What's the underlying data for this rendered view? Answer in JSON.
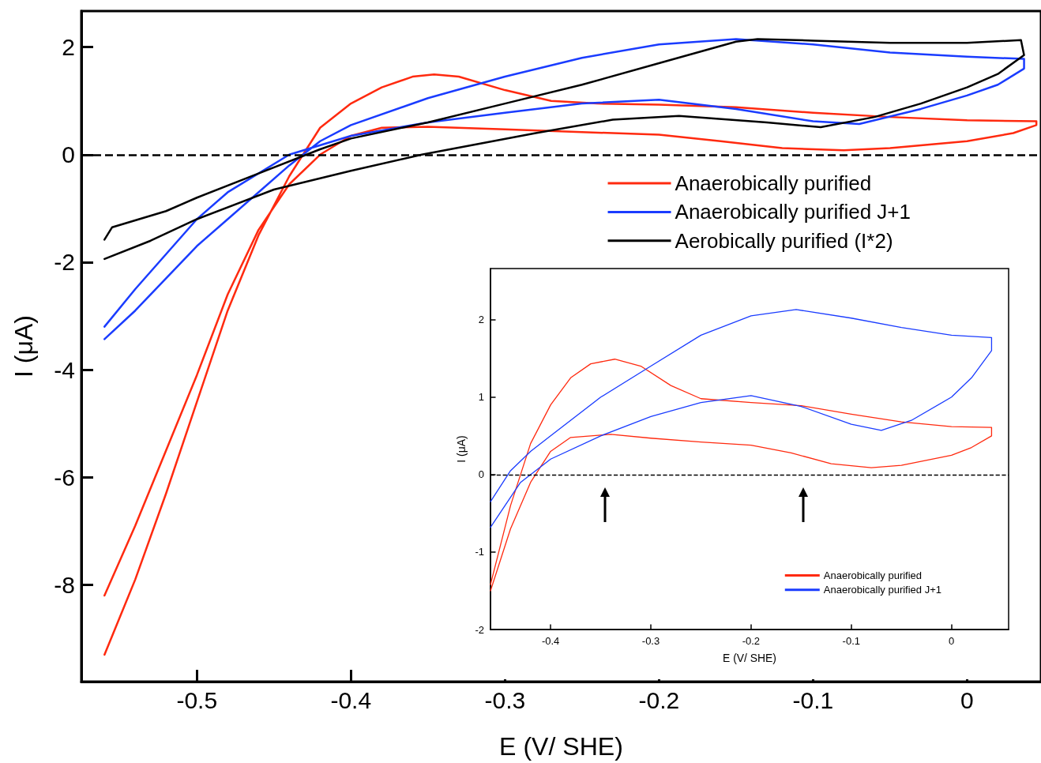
{
  "chart_data": [
    {
      "type": "line",
      "xlabel": "E (V/ SHE)",
      "ylabel": "I (μA)",
      "xlim": [
        -0.575,
        0.048
      ],
      "ylim": [
        -9.8,
        2.67
      ],
      "xticks": [
        -0.5,
        -0.4,
        -0.3,
        -0.2,
        -0.1,
        0
      ],
      "yticks": [
        -8,
        -6,
        -4,
        -2,
        0,
        2
      ],
      "grid": false,
      "legend": "top right",
      "marker": "none",
      "line_style": "solid",
      "ref_lines": [
        {
          "axis": "y",
          "value": 0,
          "line_style": "dashed",
          "color": "#000000"
        }
      ],
      "series": [
        {
          "name": "Anaerobically purified",
          "color": "#ff2a0f",
          "x": [
            -0.56,
            -0.54,
            -0.52,
            -0.5,
            -0.48,
            -0.46,
            -0.44,
            -0.42,
            -0.4,
            -0.38,
            -0.36,
            -0.346,
            -0.33,
            -0.3,
            -0.27,
            -0.24,
            -0.2,
            -0.15,
            -0.1,
            -0.05,
            0,
            0.045,
            0.045,
            0.03,
            0,
            -0.05,
            -0.08,
            -0.12,
            -0.16,
            -0.2,
            -0.25,
            -0.3,
            -0.35,
            -0.38,
            -0.4,
            -0.42,
            -0.44,
            -0.46,
            -0.48,
            -0.5,
            -0.52,
            -0.54,
            -0.56
          ],
          "values": [
            -9.3,
            -7.9,
            -6.3,
            -4.6,
            -2.9,
            -1.5,
            -0.4,
            0.5,
            0.95,
            1.25,
            1.45,
            1.49,
            1.45,
            1.2,
            1.0,
            0.95,
            0.93,
            0.88,
            0.78,
            0.7,
            0.64,
            0.62,
            0.55,
            0.4,
            0.25,
            0.12,
            0.08,
            0.12,
            0.25,
            0.37,
            0.42,
            0.47,
            0.52,
            0.5,
            0.35,
            0.0,
            -0.55,
            -1.4,
            -2.6,
            -4.1,
            -5.5,
            -6.9,
            -8.2
          ]
        },
        {
          "name": "Anaerobically purified J+1",
          "color": "#1a3cff",
          "x": [
            -0.56,
            -0.54,
            -0.52,
            -0.5,
            -0.48,
            -0.46,
            -0.44,
            -0.42,
            -0.4,
            -0.35,
            -0.3,
            -0.25,
            -0.2,
            -0.15,
            -0.1,
            -0.05,
            0,
            0.037,
            0.037,
            0.02,
            0,
            -0.03,
            -0.07,
            -0.1,
            -0.15,
            -0.2,
            -0.25,
            -0.3,
            -0.35,
            -0.4,
            -0.44,
            -0.48,
            -0.5,
            -0.52,
            -0.54,
            -0.56
          ],
          "values": [
            -3.43,
            -2.9,
            -2.3,
            -1.7,
            -1.2,
            -0.7,
            -0.2,
            0.25,
            0.55,
            1.05,
            1.45,
            1.8,
            2.05,
            2.15,
            2.05,
            1.9,
            1.82,
            1.78,
            1.6,
            1.3,
            1.1,
            0.85,
            0.57,
            0.62,
            0.85,
            1.02,
            0.95,
            0.78,
            0.6,
            0.35,
            0.0,
            -0.7,
            -1.2,
            -1.85,
            -2.5,
            -3.2
          ]
        },
        {
          "name": "Aerobically purified (I*2)",
          "color": "#000000",
          "x": [
            -0.56,
            -0.555,
            -0.52,
            -0.5,
            -0.46,
            -0.42,
            -0.4,
            -0.35,
            -0.3,
            -0.25,
            -0.2,
            -0.15,
            -0.136,
            -0.1,
            -0.05,
            0,
            0.035,
            0.037,
            0.02,
            0,
            -0.03,
            -0.06,
            -0.095,
            -0.13,
            -0.187,
            -0.23,
            -0.28,
            -0.354,
            -0.4,
            -0.45,
            -0.5,
            -0.53,
            -0.56
          ],
          "values": [
            -1.58,
            -1.35,
            -1.05,
            -0.8,
            -0.35,
            0.1,
            0.3,
            0.6,
            0.95,
            1.3,
            1.7,
            2.1,
            2.15,
            2.12,
            2.08,
            2.08,
            2.13,
            1.85,
            1.5,
            1.25,
            0.95,
            0.7,
            0.51,
            0.6,
            0.72,
            0.65,
            0.4,
            0.0,
            -0.3,
            -0.65,
            -1.2,
            -1.6,
            -1.94
          ]
        }
      ]
    },
    {
      "type": "line",
      "xlabel": "E (V/ SHE)",
      "ylabel": "I (μA)",
      "xlim": [
        -0.46,
        0.057
      ],
      "ylim": [
        -2,
        2.66
      ],
      "xticks": [
        -0.4,
        -0.3,
        -0.2,
        -0.1,
        0
      ],
      "yticks": [
        -2,
        -1,
        0,
        1,
        2
      ],
      "grid": false,
      "legend": "bottom right",
      "marker": "none",
      "line_style": "solid",
      "ref_lines": [
        {
          "axis": "y",
          "value": 0,
          "line_style": "dashed",
          "color": "#000000"
        }
      ],
      "series": [
        {
          "name": "Anaerobically purified",
          "color": "#ff2a0f",
          "x": [
            -0.46,
            -0.44,
            -0.42,
            -0.4,
            -0.38,
            -0.36,
            -0.336,
            -0.31,
            -0.28,
            -0.25,
            -0.2,
            -0.15,
            -0.1,
            -0.05,
            0,
            0.04,
            0.04,
            0.02,
            0,
            -0.05,
            -0.08,
            -0.12,
            -0.16,
            -0.2,
            -0.25,
            -0.3,
            -0.34,
            -0.38,
            -0.4,
            -0.42,
            -0.44,
            -0.46
          ],
          "values": [
            -1.42,
            -0.4,
            0.4,
            0.9,
            1.25,
            1.43,
            1.49,
            1.4,
            1.15,
            0.98,
            0.93,
            0.89,
            0.78,
            0.68,
            0.62,
            0.61,
            0.5,
            0.35,
            0.25,
            0.12,
            0.09,
            0.14,
            0.28,
            0.38,
            0.42,
            0.47,
            0.52,
            0.48,
            0.3,
            -0.1,
            -0.7,
            -1.5
          ]
        },
        {
          "name": "Anaerobically purified J+1",
          "color": "#1a3cff",
          "x": [
            -0.46,
            -0.44,
            -0.42,
            -0.4,
            -0.35,
            -0.3,
            -0.25,
            -0.2,
            -0.155,
            -0.1,
            -0.05,
            0,
            0.04,
            0.04,
            0.02,
            0,
            -0.04,
            -0.07,
            -0.1,
            -0.15,
            -0.2,
            -0.25,
            -0.3,
            -0.35,
            -0.4,
            -0.43,
            -0.46
          ],
          "values": [
            -0.35,
            0.05,
            0.3,
            0.5,
            1.0,
            1.4,
            1.8,
            2.05,
            2.13,
            2.02,
            1.9,
            1.8,
            1.77,
            1.6,
            1.25,
            1.0,
            0.7,
            0.57,
            0.65,
            0.88,
            1.02,
            0.93,
            0.75,
            0.5,
            0.2,
            -0.1,
            -0.68
          ]
        }
      ]
    }
  ]
}
